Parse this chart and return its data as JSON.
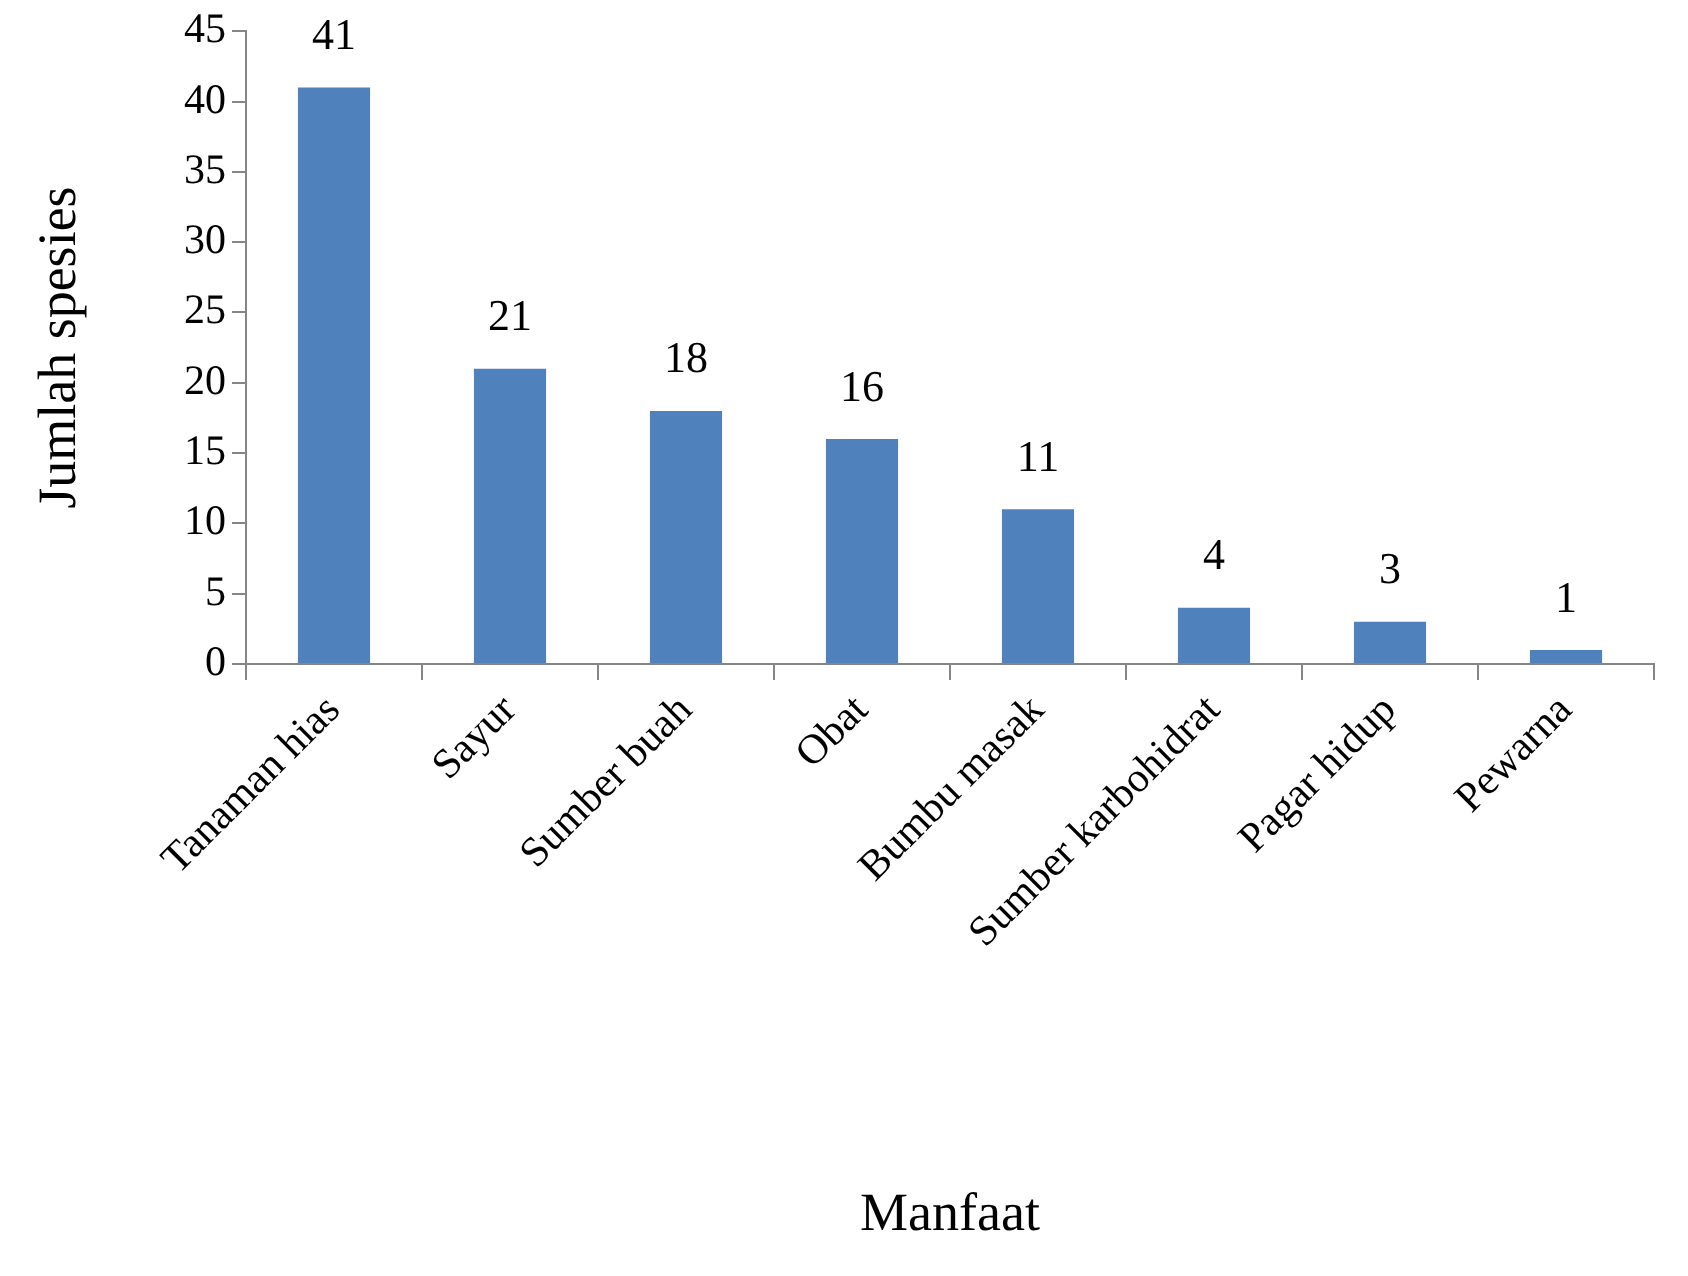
{
  "chart_data": {
    "type": "bar",
    "xlabel": "Manfaat",
    "ylabel": "Jumlah spesies",
    "categories": [
      "Tanaman hias",
      "Sayur",
      "Sumber buah",
      "Obat",
      "Bumbu masak",
      "Sumber karbohidrat",
      "Pagar hidup",
      "Pewarna"
    ],
    "values": [
      41,
      21,
      18,
      16,
      11,
      4,
      3,
      1
    ],
    "color": "#4f81bd",
    "ylim": [
      0,
      45
    ],
    "yticks": [
      0,
      5,
      10,
      15,
      20,
      25,
      30,
      35,
      40,
      45
    ],
    "grid": false,
    "legend": false,
    "data_labels": true
  }
}
